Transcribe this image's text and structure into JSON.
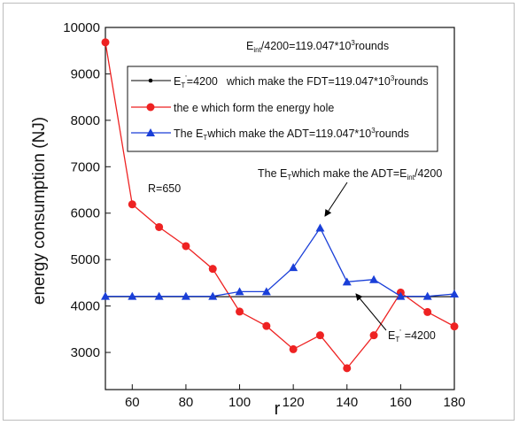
{
  "chart_data": {
    "type": "line",
    "xlabel": "r",
    "ylabel": "energy consumption (NJ)",
    "xlim": [
      50,
      180
    ],
    "ylim": [
      2200,
      10000
    ],
    "x_ticks": [
      60,
      80,
      100,
      120,
      140,
      160,
      180
    ],
    "y_ticks": [
      3000,
      4000,
      5000,
      6000,
      7000,
      8000,
      9000,
      10000
    ],
    "x_tick_labels": [
      "60",
      "80",
      "100",
      "120",
      "140",
      "160",
      "180"
    ],
    "y_tick_labels": [
      "3000",
      "4000",
      "5000",
      "6000",
      "7000",
      "8000",
      "9000",
      "10000"
    ],
    "grid": false,
    "legend_position": "top",
    "series": [
      {
        "legend_label": "which make the FDT=119.047*10",
        "color": "#000000",
        "marker": "dot",
        "x": [
          50,
          180
        ],
        "y": [
          4200,
          4200
        ]
      },
      {
        "legend_label": "the e which form the energy hole",
        "color": "#ee2222",
        "marker": "circle",
        "x": [
          50,
          60,
          70,
          80,
          90,
          100,
          110,
          120,
          130,
          140,
          150,
          160,
          170,
          180
        ],
        "y": [
          9680,
          6190,
          5700,
          5290,
          4800,
          3880,
          3570,
          3070,
          3370,
          2660,
          3370,
          4290,
          3870,
          3560
        ]
      },
      {
        "legend_label": "which make the ADT=119.047*10",
        "color": "#1a3fd8",
        "marker": "triangle",
        "x": [
          50,
          60,
          70,
          80,
          90,
          100,
          110,
          120,
          130,
          140,
          150,
          160,
          170,
          180
        ],
        "y": [
          4210,
          4210,
          4210,
          4210,
          4210,
          4310,
          4310,
          4830,
          5680,
          4520,
          4570,
          4210,
          4210,
          4260
        ]
      }
    ],
    "annotations": {
      "top_note": "/4200=119.047*10",
      "r_note": "R=650",
      "adt_arrow_note_mid": "which make the ADT=E",
      "adt_arrow_note_end": "/4200",
      "et_arrow_note": "=4200"
    }
  },
  "text_pieces": {
    "E": "E",
    "sub_T": "T",
    "sub_int": "int",
    "sup_prime": "'",
    "sup_3": "3",
    "rounds": "rounds",
    "legend_black_value": "=4200",
    "legend_blue_prefix": "The E",
    "ann_adt_prefix": "The E"
  },
  "colors": {
    "black_series": "#000000",
    "red_series": "#ee2222",
    "blue_series": "#1a3fd8",
    "frame": "#bdbdbd"
  }
}
